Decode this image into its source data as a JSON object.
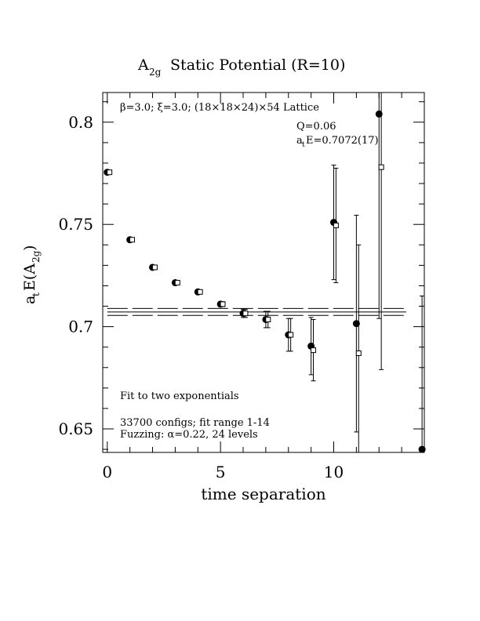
{
  "chart_data": {
    "type": "scatter",
    "title_main": "A",
    "title_sub": "2g",
    "title_rest": " Static Potential (R=10)",
    "xlabel": "time separation",
    "ylabel_a": "a",
    "ylabel_t": "t",
    "ylabel_mid": "E(A",
    "ylabel_sub": "2g",
    "ylabel_end": ")",
    "xlim": [
      -0.2,
      14.0
    ],
    "ylim": [
      0.6385,
      0.8145
    ],
    "xticks": [
      0,
      5,
      10
    ],
    "xtick_labels": [
      "0",
      "5",
      "10"
    ],
    "yticks": [
      0.65,
      0.7,
      0.75,
      0.8
    ],
    "ytick_labels": [
      "0.65",
      "0.7",
      "0.75",
      "0.8"
    ],
    "annotations": {
      "lattice": "β=3.0; ξ=3.0; (18×18×24)×54 Lattice",
      "q_value": "Q=0.06",
      "energy_prefix": "a",
      "energy_sub": "t",
      "energy_rest": "E=0.7072(17)",
      "fit_type": "Fit to two exponentials",
      "configs": "33700 configs; fit range 1-14",
      "fuzzing": "Fuzzing: α=0.22, 24 levels"
    },
    "fit": {
      "value": 0.7072,
      "lower": 0.7055,
      "upper": 0.7089,
      "x_start": 0,
      "x_end": 13.2
    },
    "series": [
      {
        "marker": "filled-circle",
        "points": [
          {
            "x": 0,
            "y": 0.7755,
            "err": 0.0005
          },
          {
            "x": 1,
            "y": 0.7425,
            "err": 0.0005
          },
          {
            "x": 2,
            "y": 0.729,
            "err": 0.0005
          },
          {
            "x": 3,
            "y": 0.7215,
            "err": 0.0006
          },
          {
            "x": 4,
            "y": 0.717,
            "err": 0.0008
          },
          {
            "x": 5,
            "y": 0.711,
            "err": 0.0012
          },
          {
            "x": 6,
            "y": 0.7065,
            "err": 0.002
          },
          {
            "x": 7,
            "y": 0.7035,
            "err": 0.004
          },
          {
            "x": 8,
            "y": 0.696,
            "err": 0.008
          },
          {
            "x": 9,
            "y": 0.6905,
            "err": 0.014
          },
          {
            "x": 10,
            "y": 0.751,
            "err": 0.028
          },
          {
            "x": 11,
            "y": 0.7015,
            "err": 0.053
          },
          {
            "x": 12,
            "y": 0.804,
            "err": 0.1
          },
          {
            "x": 13.9,
            "y": 0.64,
            "err": 0.075
          }
        ]
      },
      {
        "marker": "open-square",
        "points": [
          {
            "x": 0.1,
            "y": 0.7755,
            "err": 0.0004
          },
          {
            "x": 1.1,
            "y": 0.7425,
            "err": 0.0005
          },
          {
            "x": 2.1,
            "y": 0.729,
            "err": 0.0005
          },
          {
            "x": 3.1,
            "y": 0.7215,
            "err": 0.0006
          },
          {
            "x": 4.1,
            "y": 0.717,
            "err": 0.0008
          },
          {
            "x": 5.1,
            "y": 0.711,
            "err": 0.0012
          },
          {
            "x": 6.1,
            "y": 0.7065,
            "err": 0.002
          },
          {
            "x": 7.1,
            "y": 0.7035,
            "err": 0.004
          },
          {
            "x": 8.1,
            "y": 0.696,
            "err": 0.008
          },
          {
            "x": 9.1,
            "y": 0.6885,
            "err": 0.015
          },
          {
            "x": 10.1,
            "y": 0.7495,
            "err": 0.028
          },
          {
            "x": 11.1,
            "y": 0.687,
            "err": 0.053
          },
          {
            "x": 12.1,
            "y": 0.778,
            "err": 0.099
          }
        ]
      }
    ]
  }
}
